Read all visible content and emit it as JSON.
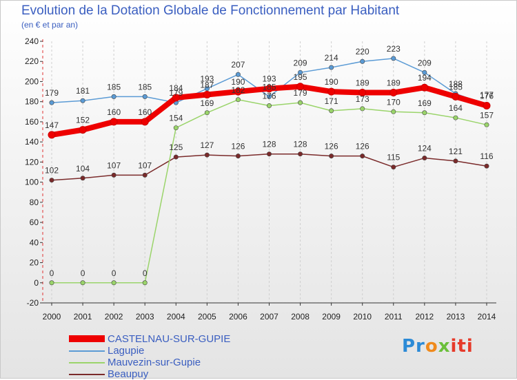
{
  "header": {
    "title": "Evolution de la Dotation Globale de Fonctionnement par Habitant",
    "subtitle": "(en € et par an)"
  },
  "chart_data": {
    "type": "line",
    "title": "Evolution de la Dotation Globale de Fonctionnement par Habitant",
    "subtitle": "(en € et par an)",
    "x": [
      2000,
      2001,
      2002,
      2003,
      2004,
      2005,
      2006,
      2007,
      2008,
      2009,
      2010,
      2011,
      2012,
      2013,
      2014
    ],
    "ylim": [
      -20,
      240
    ],
    "yticks": [
      -20,
      0,
      20,
      40,
      60,
      80,
      100,
      120,
      140,
      160,
      180,
      200,
      220,
      240
    ],
    "grid": "vertical dashed",
    "legend_position": "bottom-left",
    "series": [
      {
        "name": "CASTELNAU-SUR-GUPIE",
        "color": "#ee0000",
        "values": [
          147,
          152,
          160,
          160,
          184,
          187,
          190,
          193,
          195,
          190,
          189,
          189,
          194,
          185,
          176
        ]
      },
      {
        "name": "Lagupie",
        "color": "#5b9bd5",
        "values": [
          179,
          181,
          185,
          185,
          179,
          193,
          207,
          185,
          209,
          214,
          220,
          223,
          209,
          188,
          177
        ]
      },
      {
        "name": "Mauvezin-sur-Gupie",
        "color": "#9ad46a",
        "values": [
          0,
          0,
          0,
          0,
          154,
          169,
          182,
          176,
          179,
          171,
          173,
          170,
          169,
          164,
          157
        ]
      },
      {
        "name": "Beaupuy",
        "color": "#7a2a2a",
        "values": [
          102,
          104,
          107,
          107,
          125,
          127,
          126,
          128,
          128,
          126,
          126,
          115,
          124,
          121,
          116
        ]
      }
    ]
  },
  "logo": {
    "p1": "Pr",
    "p2": "o",
    "p3": "x",
    "p4": "iti"
  }
}
